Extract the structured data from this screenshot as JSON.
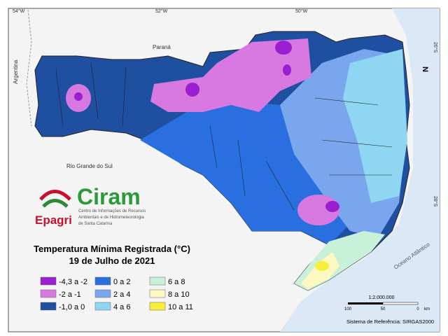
{
  "header": {
    "coords": [
      "54°W",
      "52°W",
      "50°W",
      "26°S",
      "28°S"
    ],
    "north": "N"
  },
  "places": {
    "parana": "Paraná",
    "argentina": "Argentina",
    "rs": "Rio Grande do Sul",
    "ocean": "Oceano Atlântico"
  },
  "logo": {
    "name": "Ciram",
    "org": "Epagri",
    "description": [
      "Centro de Informações de Recursos",
      "Ambientais e de Hidrometeorologia",
      "de Santa Catarina"
    ]
  },
  "title": "Temperatura Mínima Registrada (°C)",
  "subtitle": "19 de Julho de 2021",
  "legend": {
    "items": [
      {
        "label": "-4,3 a -2",
        "color": "#9a1fd0"
      },
      {
        "label": "-2 a -1",
        "color": "#d779e0"
      },
      {
        "label": "-1,0 a 0",
        "color": "#1f4fa0"
      },
      {
        "label": "0 a 2",
        "color": "#2a6fe0"
      },
      {
        "label": "2 a 4",
        "color": "#79a6ec"
      },
      {
        "label": "4 a 6",
        "color": "#8fd6f2"
      },
      {
        "label": "6 a 8",
        "color": "#c9f0d8"
      },
      {
        "label": "8 a 10",
        "color": "#fdf7c0"
      },
      {
        "label": "10 a 11",
        "color": "#f7ee3a"
      }
    ]
  },
  "scale": {
    "ratio": "1:2.000.000",
    "ticks": [
      "100",
      "50",
      "0",
      "km"
    ]
  },
  "reference": "Sistema de Referência: SIRGAS2000"
}
